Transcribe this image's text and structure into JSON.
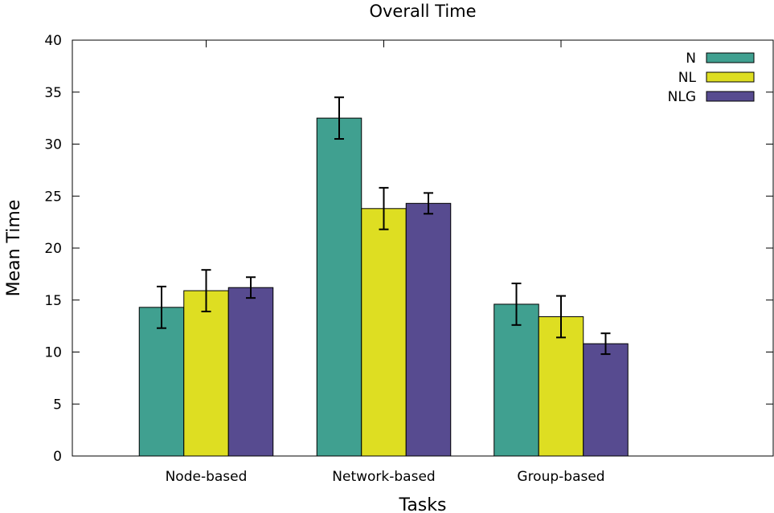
{
  "chart_data": {
    "type": "bar",
    "title": "Overall Time",
    "xlabel": "Tasks",
    "ylabel": "Mean Time",
    "categories": [
      "Node-based",
      "Network-based",
      "Group-based"
    ],
    "series": [
      {
        "name": "N",
        "color": "#40a090",
        "values": [
          14.3,
          32.5,
          14.6
        ],
        "errors": [
          2.0,
          2.0,
          2.0
        ]
      },
      {
        "name": "NL",
        "color": "#dede22",
        "values": [
          15.9,
          23.8,
          13.4
        ],
        "errors": [
          2.0,
          2.0,
          2.0
        ]
      },
      {
        "name": "NLG",
        "color": "#574b90",
        "values": [
          16.2,
          24.3,
          10.8
        ],
        "errors": [
          1.0,
          1.0,
          1.0
        ]
      }
    ],
    "ylim": [
      0,
      40
    ],
    "yticks": [
      "0",
      "5",
      "10",
      "15",
      "20",
      "25",
      "30",
      "35",
      "40"
    ],
    "legend_position": "top-right",
    "grid": false,
    "error_bars": true
  }
}
